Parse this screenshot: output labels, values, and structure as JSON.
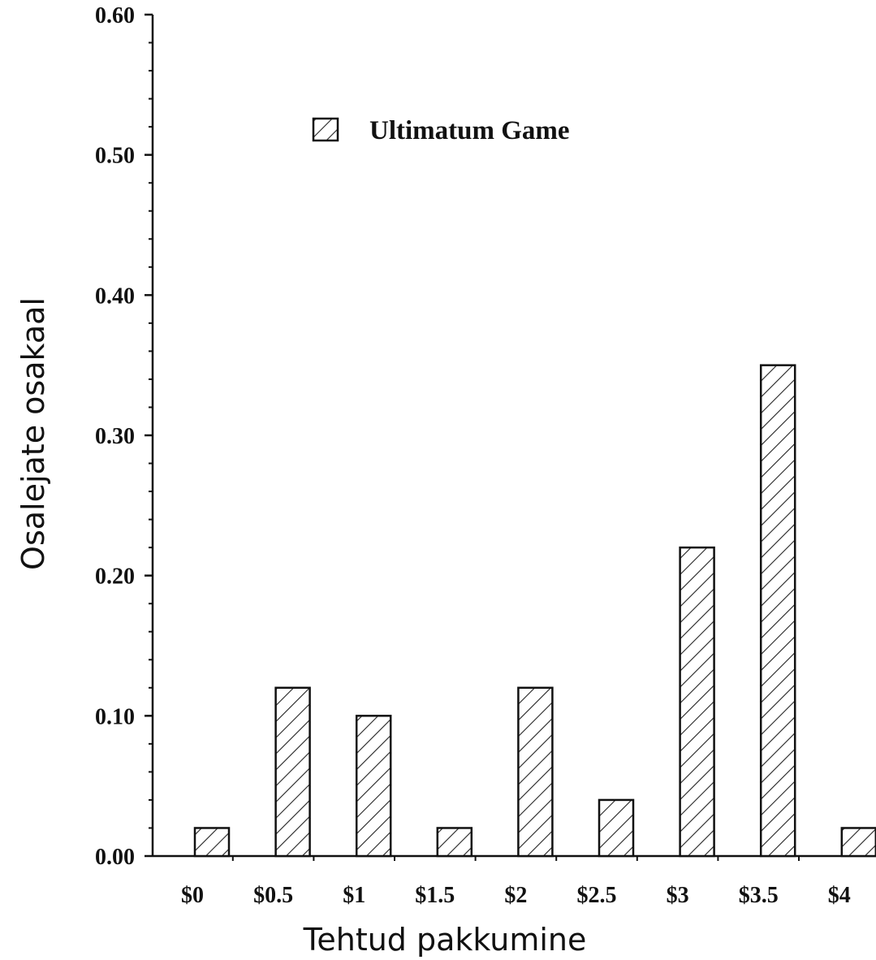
{
  "chart_data": {
    "type": "bar",
    "title": "",
    "xlabel": "Tehtud pakkumine",
    "ylabel": "Osalejate osakaal",
    "categories": [
      "$0",
      "$0.5",
      "$1",
      "$1.5",
      "$2",
      "$2.5",
      "$3",
      "$3.5",
      "$4"
    ],
    "series": [
      {
        "name": "Ultimatum Game",
        "values": [
          0.02,
          0.12,
          0.1,
          0.02,
          0.12,
          0.04,
          0.22,
          0.35,
          0.02
        ]
      }
    ],
    "ylim": [
      0,
      0.6
    ],
    "yticks": [
      "0.00",
      "0.10",
      "0.20",
      "0.30",
      "0.40",
      "0.50",
      "0.60"
    ],
    "grid": false,
    "legend_position": "top-left",
    "bar_fill": "diagonal-hatch",
    "colors": {
      "bar_stroke": "#111111",
      "hatch": "#222222",
      "axis": "#111111",
      "background": "#ffffff"
    }
  }
}
